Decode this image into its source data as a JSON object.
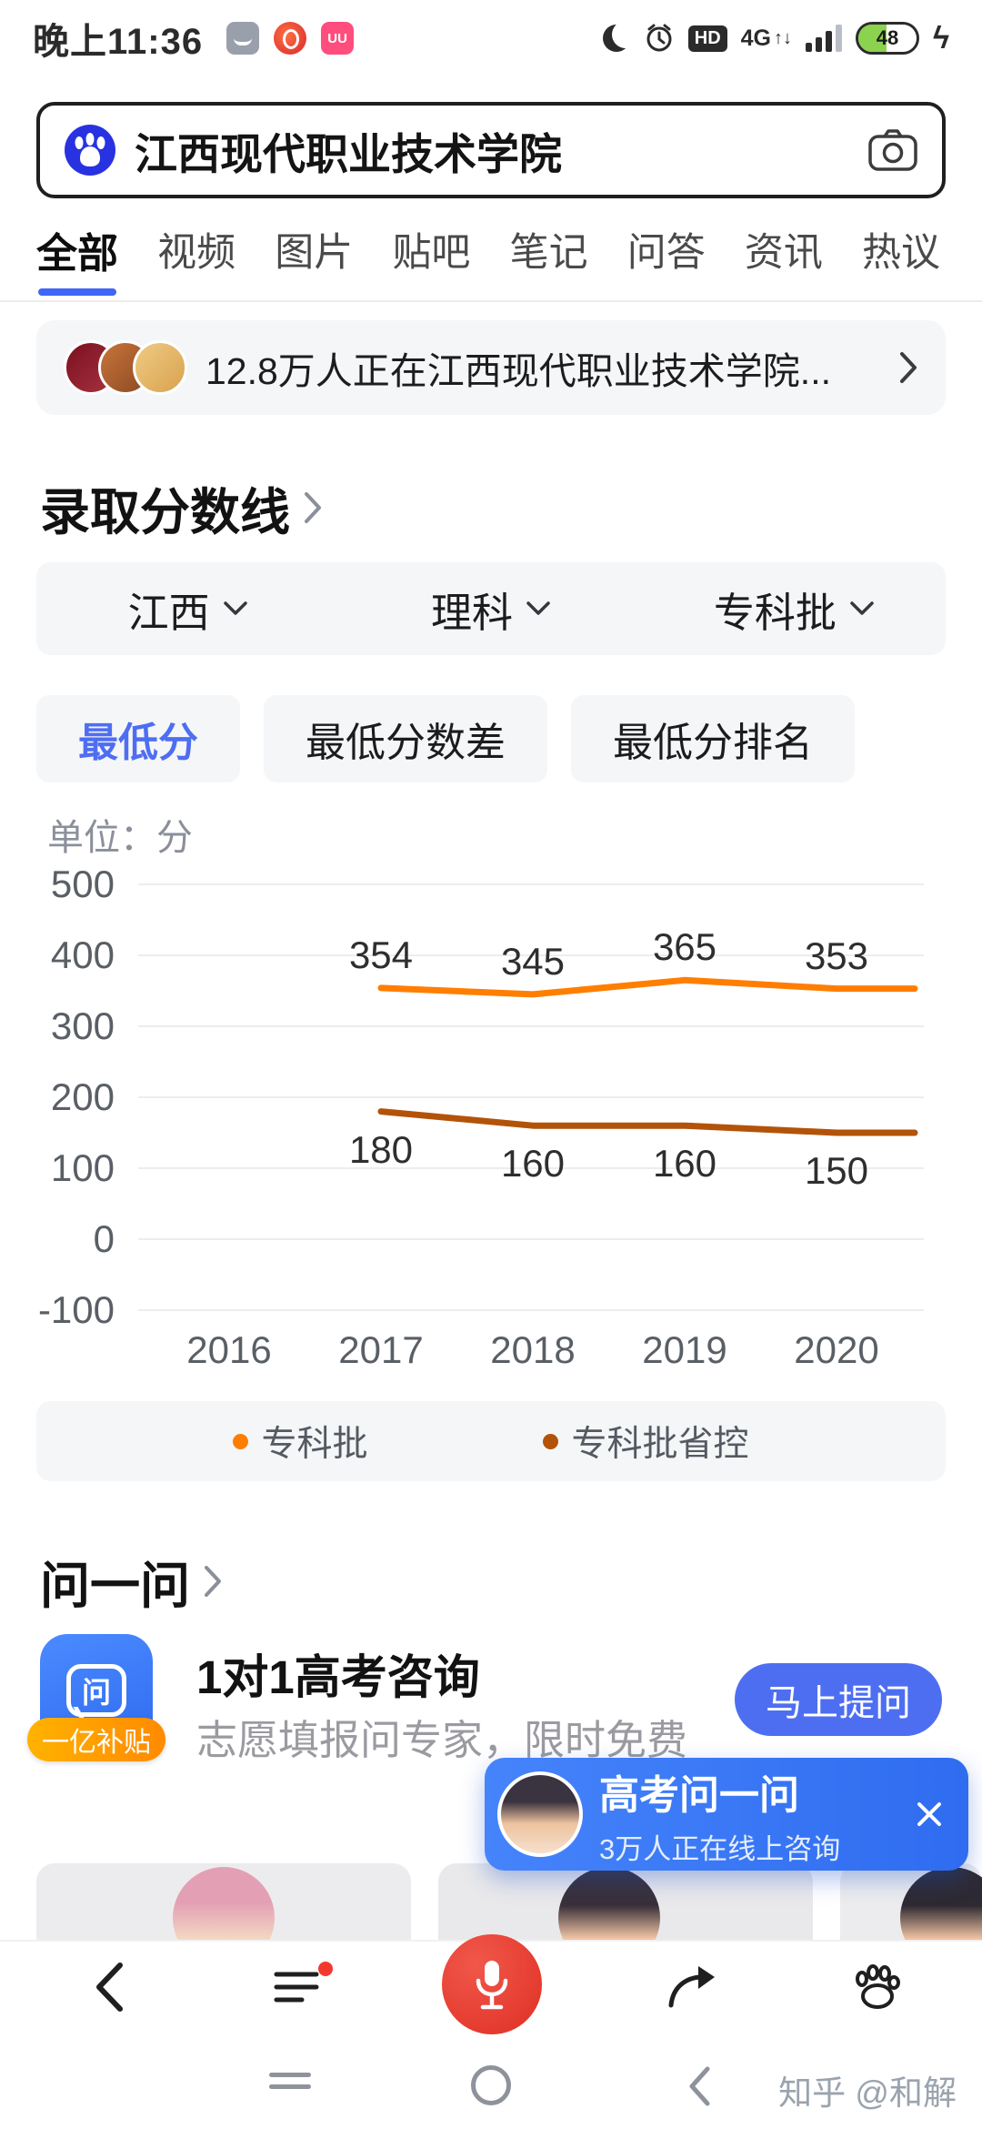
{
  "status_bar": {
    "time": "晚上11:36",
    "network": "4G",
    "network_arrows": "↑↓",
    "hd": "HD",
    "battery_percent": "48",
    "bolt": "ϟ",
    "app3_label": "UU"
  },
  "search": {
    "query": "江西现代职业技术学院"
  },
  "tabs": [
    {
      "label": "全部",
      "active": true
    },
    {
      "label": "视频"
    },
    {
      "label": "图片"
    },
    {
      "label": "贴吧"
    },
    {
      "label": "笔记"
    },
    {
      "label": "问答"
    },
    {
      "label": "资讯"
    },
    {
      "label": "热议"
    }
  ],
  "crowd_banner": {
    "text": "12.8万人正在江西现代职业技术学院..."
  },
  "score_section": {
    "title": "录取分数线",
    "filters": [
      {
        "label": "江西"
      },
      {
        "label": "理科"
      },
      {
        "label": "专科批"
      }
    ],
    "toggles": [
      {
        "label": "最低分",
        "active": true
      },
      {
        "label": "最低分数差",
        "active": false
      },
      {
        "label": "最低分排名",
        "active": false
      }
    ],
    "unit": "单位：分"
  },
  "chart_data": {
    "type": "line",
    "title": "录取分数线 最低分",
    "categories": [
      "2016",
      "2017",
      "2018",
      "2019",
      "2020"
    ],
    "series": [
      {
        "name": "专科批",
        "color": "#ff7e00",
        "label_pos": "above",
        "values": [
          null,
          354,
          345,
          365,
          353
        ]
      },
      {
        "name": "专科批省控",
        "color": "#b35309",
        "label_pos": "below",
        "values": [
          null,
          180,
          160,
          160,
          150
        ]
      }
    ],
    "xlabel": "",
    "ylabel": "单位：分",
    "yticks": [
      500,
      400,
      300,
      200,
      100,
      0,
      -100
    ],
    "ylim": [
      -100,
      500
    ],
    "grid": true,
    "legend_position": "bottom"
  },
  "ask_section": {
    "title": "问一问",
    "icon_glyph": "问",
    "badge": "一亿补贴",
    "card_title": "1对1高考咨询",
    "card_subtitle": "志愿填报问专家，限时免费",
    "ask_button": "马上提问"
  },
  "float_banner": {
    "title": "高考问一问",
    "subtitle": "3万人正在线上咨询"
  },
  "system_nav": {
    "watermark": "知乎 @和解"
  },
  "colors": {
    "accent_blue": "#4e6ef2",
    "tab_underline": "#3f66f5",
    "mic_red": "#e02f24",
    "banner_blue": "#2f6cf0",
    "badge_orange": "#ff9100",
    "battery_green": "#8bd24e"
  },
  "icons": [
    "moon-icon",
    "clock-icon",
    "hd-icon",
    "signal-icon",
    "battery-icon",
    "bolt-icon",
    "baidu-logo-icon",
    "camera-icon",
    "chevron-right-icon",
    "chevron-down-icon",
    "legend-dot",
    "ask-bubble-icon",
    "close-icon",
    "back-icon",
    "feed-icon",
    "mic-icon",
    "share-icon",
    "baidu-paw-icon",
    "recents-icon",
    "home-icon"
  ]
}
